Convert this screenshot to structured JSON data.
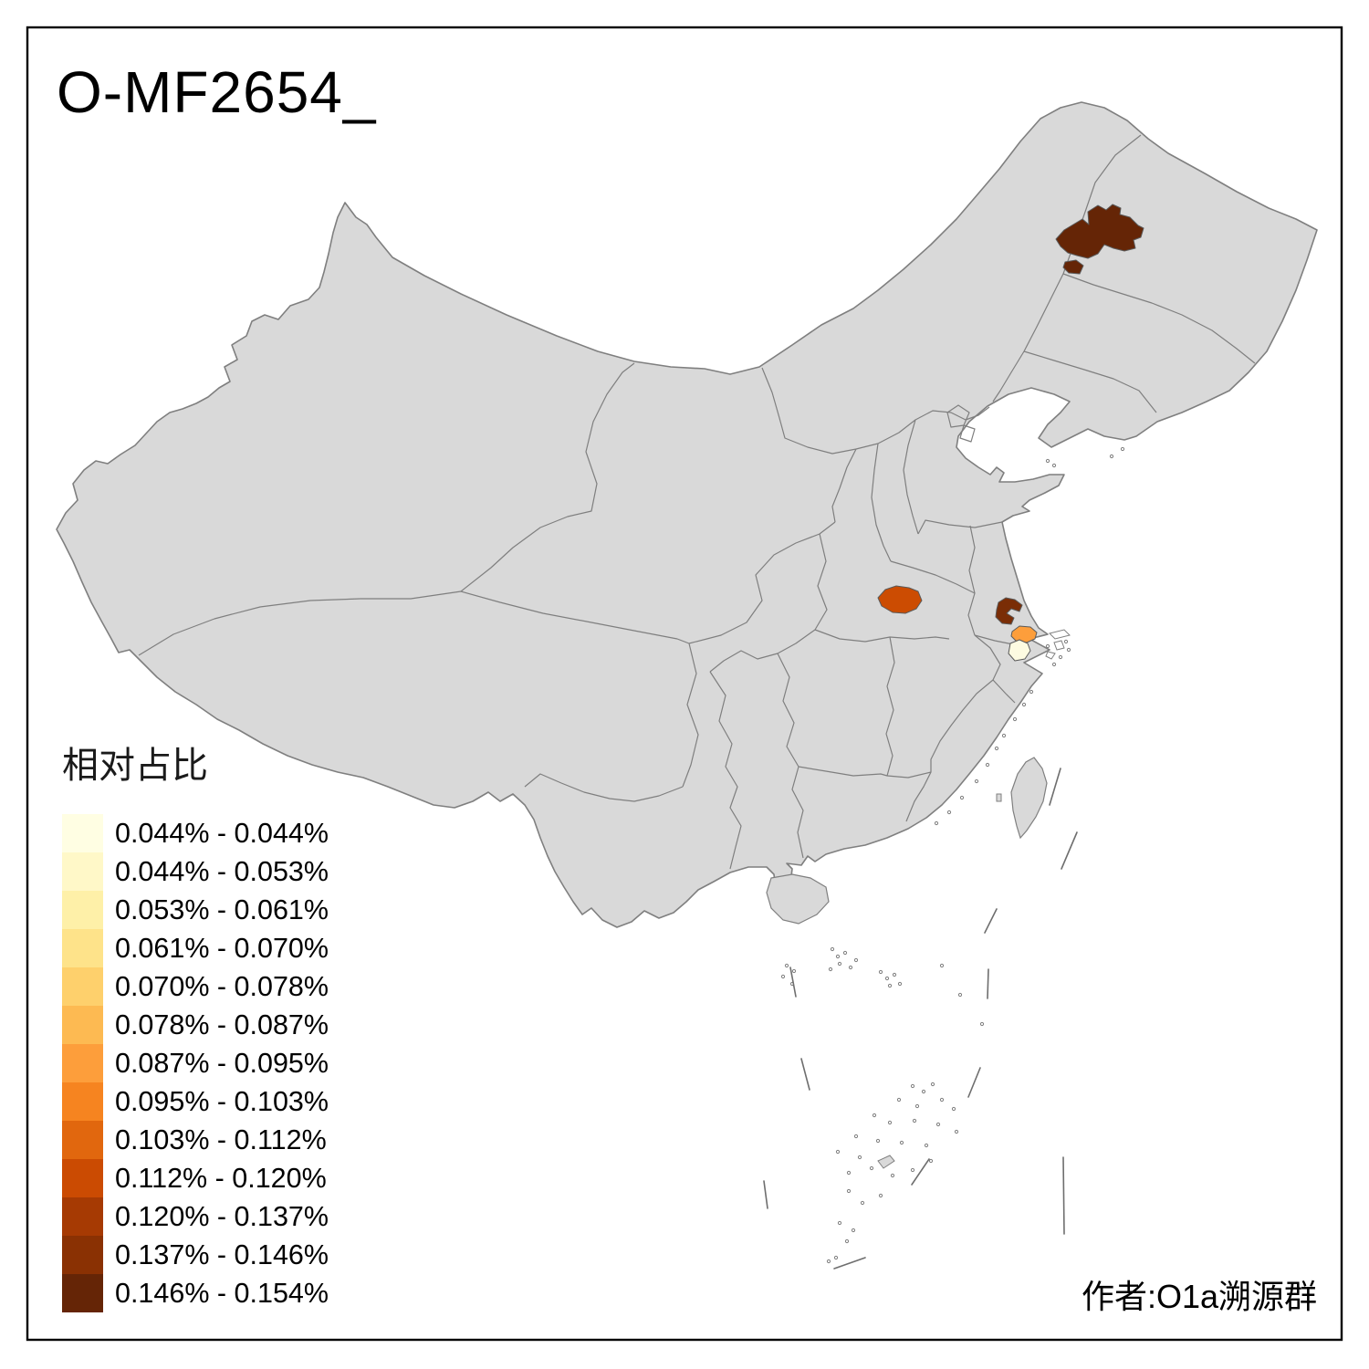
{
  "figure": {
    "title": "O-MF2654_",
    "attribution": "作者:O1a溯源群"
  },
  "legend": {
    "title": "相对占比",
    "items": [
      {
        "label": "0.044% - 0.044%",
        "color": "#FFFEE3"
      },
      {
        "label": "0.044% - 0.053%",
        "color": "#FFF8C8"
      },
      {
        "label": "0.053% - 0.061%",
        "color": "#FEF0A8"
      },
      {
        "label": "0.061% - 0.070%",
        "color": "#FEE38A"
      },
      {
        "label": "0.070% - 0.078%",
        "color": "#FED06C"
      },
      {
        "label": "0.078% - 0.087%",
        "color": "#FDBA52"
      },
      {
        "label": "0.087% - 0.095%",
        "color": "#FD9E3B"
      },
      {
        "label": "0.095% - 0.103%",
        "color": "#F68420"
      },
      {
        "label": "0.103% - 0.112%",
        "color": "#E1670E"
      },
      {
        "label": "0.112% - 0.120%",
        "color": "#CB4B02"
      },
      {
        "label": "0.120% - 0.137%",
        "color": "#A63A03"
      },
      {
        "label": "0.137% - 0.146%",
        "color": "#8A3103"
      },
      {
        "label": "0.146% - 0.154%",
        "color": "#652506"
      }
    ]
  },
  "map": {
    "base_fill": "#D9D9D9",
    "border_color": "#7F7F7F",
    "frame_color": "#000000",
    "background": "#FFFFFF",
    "regions": [
      {
        "id": "region-northeast",
        "location": "northeast (Heilongjiang area)",
        "band": "0.146% - 0.154%",
        "color": "#652506"
      },
      {
        "id": "region-east-dark",
        "location": "east (lower Yangtze, west part)",
        "band": "0.137% - 0.146%",
        "color": "#7A2D06"
      },
      {
        "id": "region-central",
        "location": "central China",
        "band": "0.112% - 0.120%",
        "color": "#CC4C02"
      },
      {
        "id": "region-east-orange",
        "location": "east coast near Yangtze mouth",
        "band": "0.087% - 0.095%",
        "color": "#FD9E3B"
      },
      {
        "id": "region-east-pale",
        "location": "east, south of orange region",
        "band": "0.044% - 0.044%",
        "color": "#FDFBE1"
      }
    ]
  }
}
